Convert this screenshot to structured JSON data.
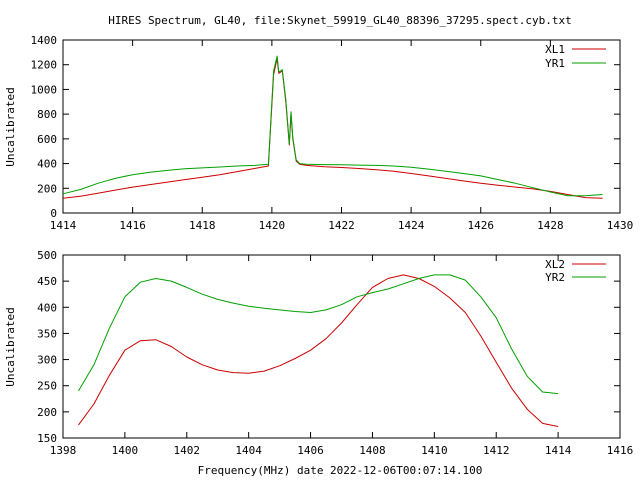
{
  "figure": {
    "title": "HIRES Spectrum, GL40, file:Skynet_59919_GL40_88396_37295.spect.cyb.txt",
    "xlabel": "Frequency(MHz) date 2022-12-06T00:07:14.100"
  },
  "colors": {
    "red": "#cc0000",
    "green": "#00a000"
  },
  "chart_data": [
    {
      "type": "line",
      "title": "HIRES Spectrum, GL40, file:Skynet_59919_GL40_88396_37295.spect.cyb.txt",
      "xlabel": "",
      "ylabel": "Uncalibrated",
      "xlim": [
        1414,
        1430
      ],
      "ylim": [
        0,
        1400
      ],
      "xticks": [
        1414,
        1416,
        1418,
        1420,
        1422,
        1424,
        1426,
        1428,
        1430
      ],
      "yticks": [
        0,
        200,
        400,
        600,
        800,
        1000,
        1200,
        1400
      ],
      "legend": "top-right",
      "series": [
        {
          "name": "XL1",
          "color": "#cc0000",
          "x": [
            1414.0,
            1414.5,
            1415.0,
            1415.5,
            1416.0,
            1416.5,
            1417.0,
            1417.5,
            1418.0,
            1418.5,
            1419.0,
            1419.5,
            1419.9,
            1420.05,
            1420.15,
            1420.2,
            1420.3,
            1420.4,
            1420.5,
            1420.55,
            1420.6,
            1420.7,
            1420.8,
            1421.0,
            1421.5,
            1422.0,
            1422.5,
            1423.0,
            1423.5,
            1424.0,
            1424.5,
            1425.0,
            1425.5,
            1426.0,
            1426.5,
            1427.0,
            1427.5,
            1428.0,
            1428.5,
            1429.0,
            1429.5
          ],
          "y": [
            120,
            135,
            160,
            185,
            210,
            230,
            250,
            270,
            290,
            310,
            335,
            360,
            380,
            1120,
            1250,
            1130,
            1150,
            900,
            550,
            800,
            600,
            420,
            395,
            385,
            375,
            368,
            360,
            350,
            338,
            320,
            300,
            280,
            260,
            240,
            225,
            210,
            195,
            175,
            150,
            125,
            120
          ]
        },
        {
          "name": "YR1",
          "color": "#00a000",
          "x": [
            1414.0,
            1414.5,
            1415.0,
            1415.5,
            1416.0,
            1416.5,
            1417.0,
            1417.5,
            1418.0,
            1418.5,
            1419.0,
            1419.5,
            1419.9,
            1420.05,
            1420.15,
            1420.2,
            1420.3,
            1420.4,
            1420.5,
            1420.55,
            1420.6,
            1420.7,
            1420.8,
            1421.0,
            1421.5,
            1422.0,
            1422.5,
            1423.0,
            1423.5,
            1424.0,
            1424.5,
            1425.0,
            1425.5,
            1426.0,
            1426.5,
            1427.0,
            1427.5,
            1428.0,
            1428.5,
            1429.0,
            1429.5
          ],
          "y": [
            155,
            190,
            240,
            280,
            310,
            330,
            345,
            358,
            365,
            372,
            380,
            385,
            395,
            1150,
            1270,
            1140,
            1160,
            920,
            560,
            820,
            610,
            430,
            400,
            395,
            392,
            390,
            388,
            385,
            380,
            370,
            355,
            338,
            320,
            300,
            270,
            240,
            205,
            170,
            140,
            140,
            150
          ]
        }
      ]
    },
    {
      "type": "line",
      "title": "",
      "xlabel": "Frequency(MHz) date 2022-12-06T00:07:14.100",
      "ylabel": "Uncalibrated",
      "xlim": [
        1398,
        1416
      ],
      "ylim": [
        150,
        500
      ],
      "xticks": [
        1398,
        1400,
        1402,
        1404,
        1406,
        1408,
        1410,
        1412,
        1414,
        1416
      ],
      "yticks": [
        150,
        200,
        250,
        300,
        350,
        400,
        450,
        500
      ],
      "legend": "top-right",
      "series": [
        {
          "name": "XL2",
          "color": "#cc0000",
          "x": [
            1398.5,
            1399.0,
            1399.5,
            1400.0,
            1400.5,
            1401.0,
            1401.5,
            1402.0,
            1402.5,
            1403.0,
            1403.5,
            1404.0,
            1404.5,
            1405.0,
            1405.5,
            1406.0,
            1406.5,
            1407.0,
            1407.5,
            1408.0,
            1408.5,
            1409.0,
            1409.5,
            1410.0,
            1410.5,
            1411.0,
            1411.5,
            1412.0,
            1412.5,
            1413.0,
            1413.5,
            1414.0
          ],
          "y": [
            175,
            215,
            270,
            318,
            336,
            338,
            325,
            305,
            290,
            280,
            275,
            274,
            278,
            288,
            302,
            318,
            340,
            370,
            405,
            438,
            455,
            462,
            455,
            440,
            418,
            390,
            345,
            295,
            245,
            205,
            178,
            172
          ]
        },
        {
          "name": "YR2",
          "color": "#00a000",
          "x": [
            1398.5,
            1399.0,
            1399.5,
            1400.0,
            1400.5,
            1401.0,
            1401.5,
            1402.0,
            1402.5,
            1403.0,
            1403.5,
            1404.0,
            1404.5,
            1405.0,
            1405.5,
            1406.0,
            1406.5,
            1407.0,
            1407.5,
            1408.0,
            1408.5,
            1409.0,
            1409.5,
            1410.0,
            1410.5,
            1411.0,
            1411.5,
            1412.0,
            1412.5,
            1413.0,
            1413.5,
            1414.0
          ],
          "y": [
            240,
            290,
            360,
            420,
            448,
            455,
            450,
            438,
            425,
            415,
            408,
            402,
            398,
            395,
            392,
            390,
            395,
            405,
            420,
            428,
            435,
            445,
            455,
            462,
            462,
            452,
            420,
            380,
            320,
            268,
            238,
            235
          ]
        }
      ]
    }
  ]
}
